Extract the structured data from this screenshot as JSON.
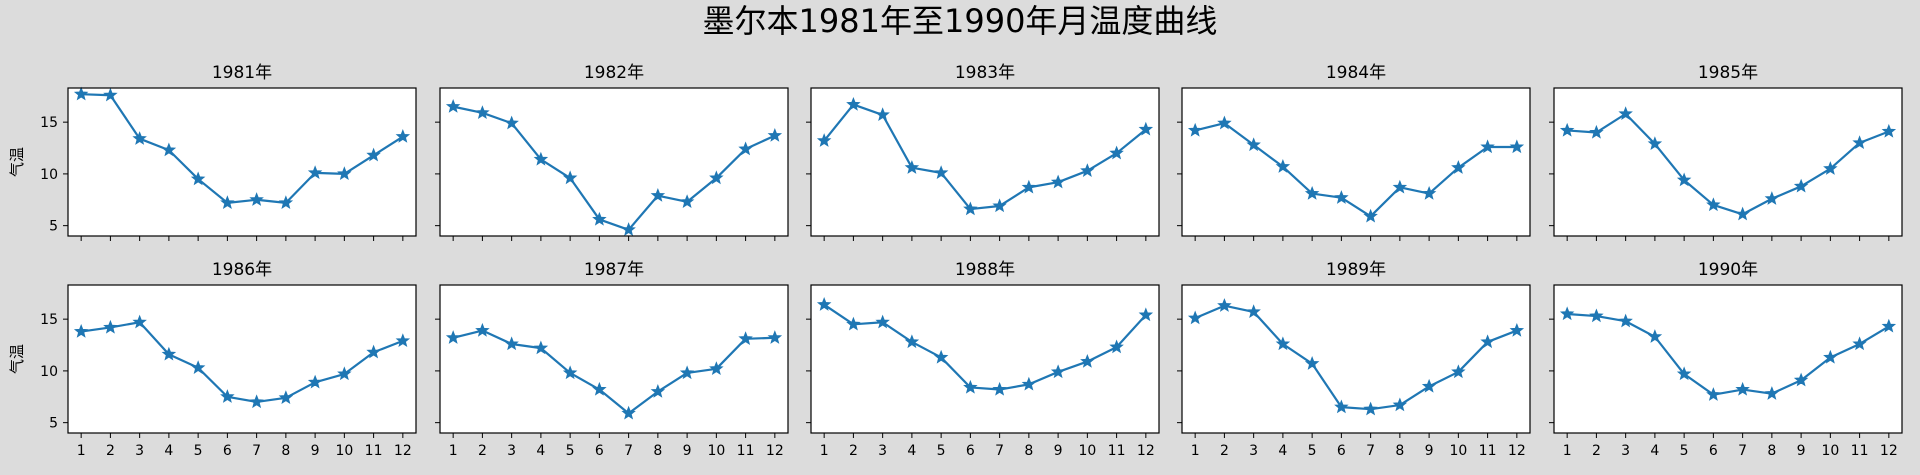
{
  "title": "墨尔本1981年至1990年月温度曲线",
  "colors": {
    "figure_bg": "#dcdcdc",
    "axes_bg": "#ffffff",
    "series": "#1f77b4",
    "axis": "#000000"
  },
  "chart_data": [
    {
      "type": "line",
      "title": "1981年",
      "xlabel": "",
      "ylabel": "气温",
      "x": [
        1,
        2,
        3,
        4,
        5,
        6,
        7,
        8,
        9,
        10,
        11,
        12
      ],
      "values": [
        17.7,
        17.6,
        13.4,
        12.3,
        9.5,
        7.2,
        7.5,
        7.2,
        10.1,
        10.0,
        11.8,
        13.6
      ],
      "xlim": [
        0.55,
        12.45
      ],
      "ylim": [
        4.0,
        18.3
      ],
      "yticks": [
        5,
        10,
        15
      ],
      "xticks": [
        1,
        2,
        3,
        4,
        5,
        6,
        7,
        8,
        9,
        10,
        11,
        12
      ],
      "marker": "star",
      "grid": false
    },
    {
      "type": "line",
      "title": "1982年",
      "xlabel": "",
      "ylabel": "",
      "x": [
        1,
        2,
        3,
        4,
        5,
        6,
        7,
        8,
        9,
        10,
        11,
        12
      ],
      "values": [
        16.5,
        15.9,
        14.9,
        11.4,
        9.6,
        5.6,
        4.6,
        7.9,
        7.3,
        9.6,
        12.4,
        13.7
      ],
      "xlim": [
        0.55,
        12.45
      ],
      "ylim": [
        4.0,
        18.3
      ],
      "yticks": [
        5,
        10,
        15
      ],
      "xticks": [
        1,
        2,
        3,
        4,
        5,
        6,
        7,
        8,
        9,
        10,
        11,
        12
      ],
      "marker": "star",
      "grid": false
    },
    {
      "type": "line",
      "title": "1983年",
      "xlabel": "",
      "ylabel": "",
      "x": [
        1,
        2,
        3,
        4,
        5,
        6,
        7,
        8,
        9,
        10,
        11,
        12
      ],
      "values": [
        13.2,
        16.7,
        15.7,
        10.6,
        10.1,
        6.6,
        6.9,
        8.7,
        9.2,
        10.3,
        12.0,
        14.3
      ],
      "xlim": [
        0.55,
        12.45
      ],
      "ylim": [
        4.0,
        18.3
      ],
      "yticks": [
        5,
        10,
        15
      ],
      "xticks": [
        1,
        2,
        3,
        4,
        5,
        6,
        7,
        8,
        9,
        10,
        11,
        12
      ],
      "marker": "star",
      "grid": false
    },
    {
      "type": "line",
      "title": "1984年",
      "xlabel": "",
      "ylabel": "",
      "x": [
        1,
        2,
        3,
        4,
        5,
        6,
        7,
        8,
        9,
        10,
        11,
        12
      ],
      "values": [
        14.2,
        14.9,
        12.8,
        10.7,
        8.1,
        7.7,
        5.9,
        8.7,
        8.1,
        10.6,
        12.6,
        12.6
      ],
      "xlim": [
        0.55,
        12.45
      ],
      "ylim": [
        4.0,
        18.3
      ],
      "yticks": [
        5,
        10,
        15
      ],
      "xticks": [
        1,
        2,
        3,
        4,
        5,
        6,
        7,
        8,
        9,
        10,
        11,
        12
      ],
      "marker": "star",
      "grid": false
    },
    {
      "type": "line",
      "title": "1985年",
      "xlabel": "",
      "ylabel": "",
      "x": [
        1,
        2,
        3,
        4,
        5,
        6,
        7,
        8,
        9,
        10,
        11,
        12
      ],
      "values": [
        14.2,
        14.0,
        15.8,
        12.9,
        9.4,
        7.0,
        6.1,
        7.6,
        8.8,
        10.5,
        13.0,
        14.1
      ],
      "xlim": [
        0.55,
        12.45
      ],
      "ylim": [
        4.0,
        18.3
      ],
      "yticks": [
        5,
        10,
        15
      ],
      "xticks": [
        1,
        2,
        3,
        4,
        5,
        6,
        7,
        8,
        9,
        10,
        11,
        12
      ],
      "marker": "star",
      "grid": false
    },
    {
      "type": "line",
      "title": "1986年",
      "xlabel": "",
      "ylabel": "气温",
      "x": [
        1,
        2,
        3,
        4,
        5,
        6,
        7,
        8,
        9,
        10,
        11,
        12
      ],
      "values": [
        13.8,
        14.2,
        14.7,
        11.6,
        10.3,
        7.5,
        7.0,
        7.4,
        8.9,
        9.7,
        11.8,
        12.9
      ],
      "xlim": [
        0.55,
        12.45
      ],
      "ylim": [
        4.0,
        18.3
      ],
      "yticks": [
        5,
        10,
        15
      ],
      "xticks": [
        1,
        2,
        3,
        4,
        5,
        6,
        7,
        8,
        9,
        10,
        11,
        12
      ],
      "marker": "star",
      "grid": false
    },
    {
      "type": "line",
      "title": "1987年",
      "xlabel": "",
      "ylabel": "",
      "x": [
        1,
        2,
        3,
        4,
        5,
        6,
        7,
        8,
        9,
        10,
        11,
        12
      ],
      "values": [
        13.2,
        13.9,
        12.6,
        12.2,
        9.8,
        8.2,
        5.9,
        8.0,
        9.8,
        10.2,
        13.1,
        13.2
      ],
      "xlim": [
        0.55,
        12.45
      ],
      "ylim": [
        4.0,
        18.3
      ],
      "yticks": [
        5,
        10,
        15
      ],
      "xticks": [
        1,
        2,
        3,
        4,
        5,
        6,
        7,
        8,
        9,
        10,
        11,
        12
      ],
      "marker": "star",
      "grid": false
    },
    {
      "type": "line",
      "title": "1988年",
      "xlabel": "",
      "ylabel": "",
      "x": [
        1,
        2,
        3,
        4,
        5,
        6,
        7,
        8,
        9,
        10,
        11,
        12
      ],
      "values": [
        16.4,
        14.5,
        14.7,
        12.8,
        11.3,
        8.4,
        8.2,
        8.7,
        9.9,
        10.9,
        12.3,
        15.4
      ],
      "xlim": [
        0.55,
        12.45
      ],
      "ylim": [
        4.0,
        18.3
      ],
      "yticks": [
        5,
        10,
        15
      ],
      "xticks": [
        1,
        2,
        3,
        4,
        5,
        6,
        7,
        8,
        9,
        10,
        11,
        12
      ],
      "marker": "star",
      "grid": false
    },
    {
      "type": "line",
      "title": "1989年",
      "xlabel": "",
      "ylabel": "",
      "x": [
        1,
        2,
        3,
        4,
        5,
        6,
        7,
        8,
        9,
        10,
        11,
        12
      ],
      "values": [
        15.1,
        16.3,
        15.7,
        12.6,
        10.7,
        6.5,
        6.3,
        6.7,
        8.5,
        9.9,
        12.8,
        13.9
      ],
      "xlim": [
        0.55,
        12.45
      ],
      "ylim": [
        4.0,
        18.3
      ],
      "yticks": [
        5,
        10,
        15
      ],
      "xticks": [
        1,
        2,
        3,
        4,
        5,
        6,
        7,
        8,
        9,
        10,
        11,
        12
      ],
      "marker": "star",
      "grid": false
    },
    {
      "type": "line",
      "title": "1990年",
      "xlabel": "",
      "ylabel": "",
      "x": [
        1,
        2,
        3,
        4,
        5,
        6,
        7,
        8,
        9,
        10,
        11,
        12
      ],
      "values": [
        15.5,
        15.3,
        14.8,
        13.3,
        9.7,
        7.7,
        8.2,
        7.8,
        9.1,
        11.3,
        12.6,
        14.3
      ],
      "xlim": [
        0.55,
        12.45
      ],
      "ylim": [
        4.0,
        18.3
      ],
      "yticks": [
        5,
        10,
        15
      ],
      "xticks": [
        1,
        2,
        3,
        4,
        5,
        6,
        7,
        8,
        9,
        10,
        11,
        12
      ],
      "marker": "star",
      "grid": false
    }
  ]
}
